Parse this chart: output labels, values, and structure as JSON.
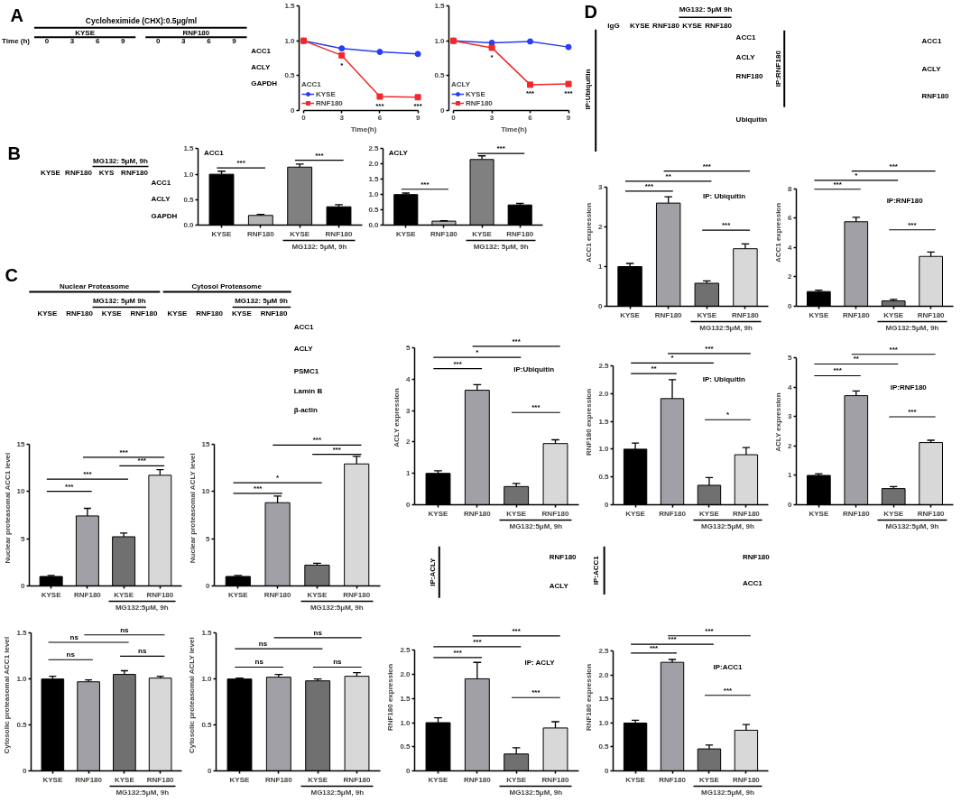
{
  "chart_data": [
    {
      "type": "heatmap",
      "title": "Cycloheximide (CHX):0.5μg/ml",
      "categories": [
        "0",
        "3",
        "6",
        "9",
        "0",
        "3",
        "6",
        "9"
      ],
      "y_categories": [
        "ACC1",
        "ACLY",
        "GAPDH"
      ],
      "cells": [
        [
          null,
          null,
          null,
          null,
          null,
          null,
          null,
          null
        ],
        [
          null,
          null,
          null,
          null,
          null,
          null,
          null,
          null
        ],
        [
          null,
          null,
          null,
          null,
          null,
          null,
          null,
          null
        ]
      ],
      "annotations": [
        "A",
        "KYSE",
        "RNF180",
        "Time (h)"
      ]
    },
    {
      "type": "line",
      "x": [
        0,
        3,
        6,
        9
      ],
      "xlim": [
        0,
        9
      ],
      "xticks": [
        0,
        3,
        6,
        9
      ],
      "xlabel": "Time(h)",
      "ylim": [
        0,
        1.5
      ],
      "yticks": [
        0,
        0.5,
        {
          "value": 1,
          "label": "1.0"
        },
        1.5
      ],
      "legend": "bottom left",
      "legend_title": "ACC1",
      "series": [
        {
          "name": "KYSE",
          "color": "#2a3cf4",
          "marker": "circle",
          "values": [
            1.0,
            0.89,
            0.84,
            0.81
          ]
        },
        {
          "name": "RNF180",
          "color": "#f0282a",
          "marker": "square",
          "values": [
            1.0,
            0.79,
            0.2,
            0.19
          ]
        }
      ],
      "annotations": [
        "*",
        "***",
        "***"
      ]
    },
    {
      "type": "line",
      "x": [
        0,
        3,
        6,
        9
      ],
      "xlim": [
        0,
        9
      ],
      "xticks": [
        0,
        3,
        6,
        9
      ],
      "xlabel": "Time(h)",
      "ylim": [
        0,
        1.5
      ],
      "yticks": [
        0,
        0.5,
        {
          "value": 1,
          "label": "1.0"
        },
        1.5
      ],
      "legend": "bottom left",
      "legend_title": "ACLY",
      "series": [
        {
          "name": "KYSE",
          "color": "#2a3cf4",
          "marker": "circle",
          "values": [
            1.0,
            0.97,
            0.99,
            0.91
          ]
        },
        {
          "name": "RNF180",
          "color": "#f0282a",
          "marker": "square",
          "values": [
            1.0,
            0.9,
            0.37,
            0.38
          ]
        }
      ],
      "annotations": [
        "*",
        "***",
        "***"
      ]
    },
    {
      "type": "other",
      "annotations": [
        "B",
        "MG132: 5μM, 9h",
        "KYSE",
        "RNF180",
        "KYS",
        "RNF180",
        "ACC1",
        "ACLY",
        "GAPDH"
      ]
    },
    {
      "type": "bar",
      "title": "ACC1",
      "categories": [
        "KYSE",
        "RNF180",
        "KYSE",
        "RNF180"
      ],
      "values": [
        1.0,
        0.19,
        1.14,
        0.36
      ],
      "errors": [
        [
          1.0,
          1.06
        ],
        [
          0.19,
          0.21
        ],
        [
          1.14,
          1.2
        ],
        [
          0.36,
          0.4
        ]
      ],
      "colors": [
        "#000000",
        "#b4b4b4",
        "#808080",
        "#000000"
      ],
      "ylim": [
        0,
        1.5
      ],
      "yticks": [
        {
          "value": 0,
          "label": "0.0"
        },
        0.5,
        {
          "value": 1,
          "label": "1.0"
        },
        1.5
      ],
      "annotations": [
        "***",
        "***",
        "MG132: 5μM, 9h"
      ]
    },
    {
      "type": "bar",
      "title": "ACLY",
      "categories": [
        "KYSE",
        "RNF180",
        "KYSE",
        "RNF180"
      ],
      "values": [
        1.0,
        0.13,
        2.15,
        0.66
      ],
      "errors": [
        [
          1.0,
          1.05
        ],
        [
          0.13,
          0.14
        ],
        [
          2.15,
          2.27
        ],
        [
          0.66,
          0.71
        ]
      ],
      "colors": [
        "#000000",
        "#b4b4b4",
        "#808080",
        "#000000"
      ],
      "ylim": [
        0,
        2.5
      ],
      "yticks": [
        {
          "value": 0,
          "label": "0.0"
        },
        0.5,
        {
          "value": 1,
          "label": "1.0"
        },
        1.5,
        {
          "value": 2,
          "label": "2.0"
        },
        2.5
      ],
      "annotations": [
        "***",
        "***",
        "MG132: 5μM, 9h"
      ]
    },
    {
      "type": "other",
      "annotations": [
        "C",
        "Nuclear Proteasome",
        "Cytosol Proteasome",
        "MG132: 5μM 9h",
        "MG132: 5μM 9h",
        "KYSE",
        "RNF180",
        "KYSE",
        "RNF180",
        "KYSE",
        "RNF180",
        "KYSE",
        "RNF180",
        "ACC1",
        "ACLY",
        "PSMC1",
        "Lamin B",
        "β-actin"
      ]
    },
    {
      "type": "bar",
      "ylabel": "Nuclear proteasomal ACC1 level",
      "categories": [
        "KYSE",
        "RNF180",
        "KYSE",
        "RNF180"
      ],
      "values": [
        1.0,
        7.4,
        5.2,
        11.7
      ],
      "errors": [
        [
          1.0,
          1.1
        ],
        [
          7.4,
          8.2
        ],
        [
          5.2,
          5.6
        ],
        [
          11.7,
          12.3
        ]
      ],
      "colors": [
        "#000000",
        "#a0a0a6",
        "#707070",
        "#d8d8d8"
      ],
      "ylim": [
        0,
        15
      ],
      "yticks": [
        0,
        5,
        10,
        15
      ],
      "annotations": [
        "***",
        "***",
        "***",
        "***",
        "MG132:5μM, 9h"
      ]
    },
    {
      "type": "bar",
      "ylabel": "Nuclear proteasomal ACLY level",
      "categories": [
        "KYSE",
        "RNF180",
        "KYSE",
        "RNF180"
      ],
      "values": [
        1.0,
        8.8,
        2.2,
        12.9
      ],
      "errors": [
        [
          1.0,
          1.1
        ],
        [
          8.8,
          9.5
        ],
        [
          2.2,
          2.4
        ],
        [
          12.9,
          13.7
        ]
      ],
      "colors": [
        "#000000",
        "#a0a0a6",
        "#707070",
        "#d8d8d8"
      ],
      "ylim": [
        0,
        15
      ],
      "yticks": [
        0,
        5,
        10,
        15
      ],
      "annotations": [
        "***",
        "***",
        "*",
        "***",
        "MG132:5μM, 9h"
      ]
    },
    {
      "type": "bar",
      "ylabel": "Cytosolic proteasomal ACC1 level",
      "categories": [
        "KYSE",
        "RNF180",
        "KYSE",
        "RNF180"
      ],
      "values": [
        1.0,
        0.97,
        1.05,
        1.01
      ],
      "errors": [
        [
          1.0,
          1.03
        ],
        [
          0.97,
          0.99
        ],
        [
          1.05,
          1.09
        ],
        [
          1.01,
          1.03
        ]
      ],
      "colors": [
        "#000000",
        "#a0a0a6",
        "#707070",
        "#d8d8d8"
      ],
      "ylim": [
        0,
        1.5
      ],
      "yticks": [
        0,
        0.5,
        {
          "value": 1,
          "label": "1.0"
        },
        1.5
      ],
      "annotations": [
        "ns",
        "ns",
        "ns",
        "ns",
        "MG132:5μM, 9h"
      ]
    },
    {
      "type": "bar",
      "ylabel": "Cytosolic proteasomal ACLY level",
      "categories": [
        "KYSE",
        "RNF180",
        "KYSE",
        "RNF180"
      ],
      "values": [
        1.0,
        1.02,
        0.98,
        1.03
      ],
      "errors": [
        [
          1.0,
          1.01
        ],
        [
          1.02,
          1.05
        ],
        [
          0.98,
          1.0
        ],
        [
          1.03,
          1.07
        ]
      ],
      "colors": [
        "#000000",
        "#a0a0a6",
        "#707070",
        "#d8d8d8"
      ],
      "ylim": [
        0,
        1.5
      ],
      "yticks": [
        0,
        0.5,
        {
          "value": 1,
          "label": "1.0"
        },
        1.5
      ],
      "annotations": [
        "ns",
        "ns",
        "ns",
        "ns",
        "MG132:5μM, 9h"
      ]
    },
    {
      "type": "other",
      "annotations": [
        "D",
        "MG132: 5μM 9h",
        "IgG",
        "KYSE",
        "RNF180",
        "KYSE",
        "RNF180",
        "ACC1",
        "ACLY",
        "RNF180",
        "Ubiquitin",
        "IP:Ubiquitin"
      ]
    },
    {
      "type": "other",
      "annotations": [
        "ACC1",
        "ACLY",
        "RNF180",
        "IP:RNF180"
      ]
    },
    {
      "type": "bar",
      "title": "IP: Ubiquitin",
      "ylabel": "ACC1 expression",
      "categories": [
        "KYSE",
        "RNF180",
        "KYSE",
        "RNF180"
      ],
      "values": [
        1.0,
        2.6,
        0.58,
        1.45
      ],
      "errors": [
        [
          1.0,
          1.08
        ],
        [
          2.6,
          2.76
        ],
        [
          0.58,
          0.64
        ],
        [
          1.45,
          1.57
        ]
      ],
      "colors": [
        "#000000",
        "#a0a0a6",
        "#707070",
        "#d8d8d8"
      ],
      "ylim": [
        0,
        3
      ],
      "yticks": [
        0,
        1,
        2,
        3
      ],
      "annotations": [
        "***",
        "**",
        "***",
        "***",
        "MG132:5μM, 9h"
      ]
    },
    {
      "type": "bar",
      "title": "IP:RNF180",
      "ylabel": "ACC1 expression",
      "categories": [
        "KYSE",
        "RNF180",
        "KYSE",
        "RNF180"
      ],
      "values": [
        1.0,
        5.75,
        0.37,
        3.39
      ],
      "errors": [
        [
          1.0,
          1.1
        ],
        [
          5.75,
          6.05
        ],
        [
          0.37,
          0.47
        ],
        [
          3.39,
          3.69
        ]
      ],
      "colors": [
        "#000000",
        "#a0a0a6",
        "#707070",
        "#d8d8d8"
      ],
      "ylim": [
        0,
        8
      ],
      "yticks": [
        0,
        2,
        4,
        6,
        8
      ],
      "annotations": [
        "***",
        "*",
        "***",
        "***",
        "MG132:5μM, 9h"
      ]
    },
    {
      "type": "bar",
      "title": "IP:Ubiquitin",
      "ylabel": "ACLY expression",
      "categories": [
        "KYSE",
        "RNF180",
        "KYSE",
        "RNF180"
      ],
      "values": [
        1.0,
        3.65,
        0.58,
        1.95
      ],
      "errors": [
        [
          1.0,
          1.08
        ],
        [
          3.65,
          3.83
        ],
        [
          0.58,
          0.68
        ],
        [
          1.95,
          2.07
        ]
      ],
      "colors": [
        "#000000",
        "#a0a0a6",
        "#707070",
        "#d8d8d8"
      ],
      "ylim": [
        0,
        5
      ],
      "yticks": [
        0,
        1,
        2,
        3,
        4,
        5
      ],
      "annotations": [
        "***",
        "*",
        "***",
        "***",
        "MG132:5μM, 9h"
      ]
    },
    {
      "type": "bar",
      "title": "IP: Ubiquitin",
      "ylabel": "RNF180 expression",
      "categories": [
        "KYSE",
        "RNF180",
        "KYSE",
        "RNF180"
      ],
      "values": [
        1.0,
        1.91,
        0.35,
        0.9
      ],
      "errors": [
        [
          1.0,
          1.11
        ],
        [
          1.91,
          2.25
        ],
        [
          0.35,
          0.49
        ],
        [
          0.9,
          1.03
        ]
      ],
      "colors": [
        "#000000",
        "#a0a0a6",
        "#707070",
        "#d8d8d8"
      ],
      "ylim": [
        0,
        2.5
      ],
      "yticks": [
        0,
        0.5,
        {
          "value": 1,
          "label": "1.0"
        },
        1.5,
        {
          "value": 2,
          "label": "2.0"
        },
        2.5
      ],
      "annotations": [
        "***",
        "*",
        "**",
        "*",
        "MG132:5μM, 9h"
      ]
    },
    {
      "type": "bar",
      "title": "IP:RNF180",
      "ylabel": "ACLY expression",
      "categories": [
        "KYSE",
        "RNF180",
        "KYSE",
        "RNF180"
      ],
      "values": [
        1.0,
        3.72,
        0.55,
        2.12
      ],
      "errors": [
        [
          1.0,
          1.06
        ],
        [
          3.72,
          3.88
        ],
        [
          0.55,
          0.62
        ],
        [
          2.12,
          2.2
        ]
      ],
      "colors": [
        "#000000",
        "#a0a0a6",
        "#707070",
        "#d8d8d8"
      ],
      "ylim": [
        0,
        5
      ],
      "yticks": [
        0,
        1,
        2,
        3,
        4,
        5
      ],
      "annotations": [
        "***",
        "**",
        "***",
        "***",
        "MG132:5μM, 9h"
      ]
    },
    {
      "type": "other",
      "annotations": [
        "RNF180",
        "ACLY",
        "IP:ACLY"
      ]
    },
    {
      "type": "other",
      "annotations": [
        "RNF180",
        "ACC1",
        "IP:ACC1"
      ]
    },
    {
      "type": "bar",
      "title": "IP: ACLY",
      "ylabel": "RNF180 expression",
      "categories": [
        "KYSE",
        "RNF180",
        "KYSE",
        "RNF180"
      ],
      "values": [
        1.0,
        1.91,
        0.35,
        0.89
      ],
      "errors": [
        [
          1.0,
          1.1
        ],
        [
          1.91,
          2.25
        ],
        [
          0.35,
          0.48
        ],
        [
          0.89,
          1.02
        ]
      ],
      "colors": [
        "#000000",
        "#a0a0a6",
        "#707070",
        "#d8d8d8"
      ],
      "ylim": [
        0,
        2.5
      ],
      "yticks": [
        0,
        0.5,
        {
          "value": 1,
          "label": "1.0"
        },
        1.5,
        {
          "value": 2,
          "label": "2.0"
        },
        2.5
      ],
      "annotations": [
        "***",
        "***",
        "***",
        "***",
        "MG132:5μM, 9h"
      ]
    },
    {
      "type": "bar",
      "title": "IP:ACC1",
      "ylabel": "RNF180 expression",
      "categories": [
        "KYSE",
        "RNF180",
        "KYSE",
        "RNF180"
      ],
      "values": [
        1.0,
        2.27,
        0.46,
        0.85
      ],
      "errors": [
        [
          1.0,
          1.06
        ],
        [
          2.27,
          2.33
        ],
        [
          0.46,
          0.54
        ],
        [
          0.85,
          0.97
        ]
      ],
      "colors": [
        "#000000",
        "#a0a0a6",
        "#707070",
        "#d8d8d8"
      ],
      "ylim": [
        0,
        2.5
      ],
      "yticks": [
        0,
        0.5,
        {
          "value": 1,
          "label": "1.0"
        },
        1.5,
        {
          "value": 2,
          "label": "2.0"
        },
        2.5
      ],
      "annotations": [
        "***",
        "***",
        "***",
        "***",
        "MG132:5μM, 9h"
      ]
    }
  ]
}
